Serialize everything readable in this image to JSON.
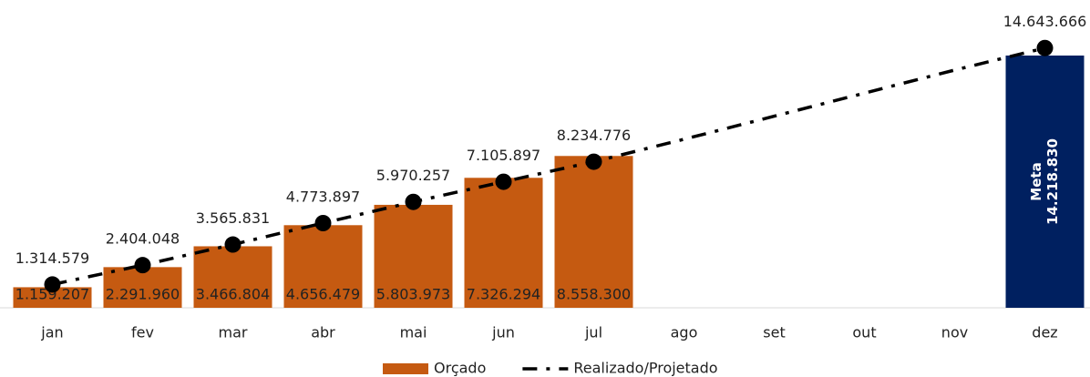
{
  "chart_data": {
    "type": "bar",
    "categories": [
      "jan",
      "fev",
      "mar",
      "abr",
      "mai",
      "jun",
      "jul",
      "ago",
      "set",
      "out",
      "nov",
      "dez"
    ],
    "ylim": [
      0,
      17350000
    ],
    "series": [
      {
        "name": "Orçado",
        "type": "bar",
        "color": "#c55a11",
        "values": [
          1159207,
          2291960,
          3466804,
          4656479,
          5803973,
          7326294,
          8558300,
          null,
          null,
          null,
          null,
          null
        ],
        "value_labels": [
          "1.159.207",
          "2.291.960",
          "3.466.804",
          "4.656.479",
          "5.803.973",
          "7.326.294",
          "8.558.300",
          null,
          null,
          null,
          null,
          null
        ]
      },
      {
        "name": "Realizado/Projetado",
        "type": "line",
        "color": "#000000",
        "values": [
          1314579,
          2404048,
          3565831,
          4773897,
          5970257,
          7105897,
          8234776,
          9500000,
          10800000,
          12100000,
          13400000,
          14643666
        ],
        "value_labels": [
          "1.314.579",
          "2.404.048",
          "3.565.831",
          "4.773.897",
          "5.970.257",
          "7.105.897",
          "8.234.776",
          null,
          null,
          null,
          null,
          "14.643.666"
        ],
        "markers": [
          true,
          true,
          true,
          true,
          true,
          true,
          true,
          false,
          false,
          false,
          false,
          true
        ]
      }
    ],
    "target": {
      "name": "Meta",
      "category": "dez",
      "value": 14218830,
      "value_label": "14.218.830",
      "color": "#002060"
    },
    "legend": "bottom"
  }
}
